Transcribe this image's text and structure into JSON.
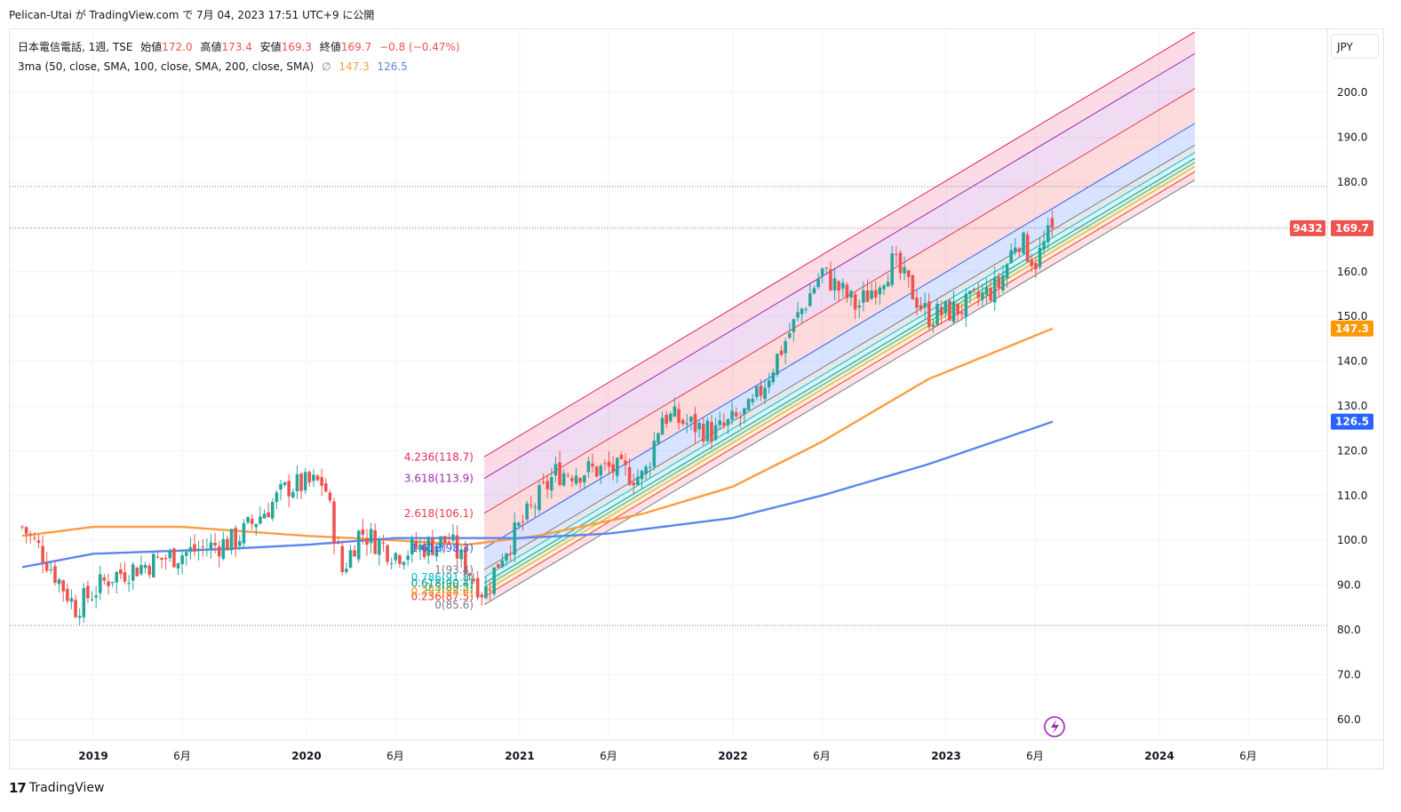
{
  "header": {
    "publish_line": "Pelican-Utai が TradingView.com で 7月 04, 2023 17:51 UTC+9 に公開"
  },
  "legend": {
    "symbol": "日本電信電話, 1週, TSE",
    "open_label": "始値",
    "open_value": "172.0",
    "high_label": "高値",
    "high_value": "173.4",
    "low_label": "安値",
    "low_value": "169.3",
    "close_label": "終値",
    "close_value": "169.7",
    "change": "−0.8 (−0.47%)",
    "indicator": "3ma (50, close, SMA, 100, close, SMA, 200, close, SMA)",
    "ma100_value": "147.3",
    "ma200_value": "126.5"
  },
  "currency": "JPY",
  "footer": {
    "brand": "TradingView"
  },
  "colors": {
    "up": "#26a69a",
    "down": "#ef5350",
    "ma100": "#ff9c42",
    "ma200": "#5b86f0",
    "grid": "#f0f3fa"
  },
  "chart_data": {
    "type": "candlestick",
    "symbol": "日本電信電話",
    "interval": "1週",
    "exchange": "TSE",
    "ylim": [
      55,
      215
    ],
    "y_ticks": [
      60,
      70,
      80,
      90,
      100,
      110,
      120,
      130,
      140,
      150,
      160,
      170,
      180,
      190,
      200
    ],
    "y_tick_labels": [
      "60.0",
      "70.0",
      "80.0",
      "90.0",
      "100.0",
      "110.0",
      "120.0",
      "130.0",
      "140.0",
      "150.0",
      "160.0",
      "170.0",
      "180.0",
      "190.0",
      "200.0"
    ],
    "x_ticks": [
      {
        "date": "2019-01",
        "label": "2019"
      },
      {
        "date": "2019-06",
        "label": "6月"
      },
      {
        "date": "2020-01",
        "label": "2020"
      },
      {
        "date": "2020-06",
        "label": "6月"
      },
      {
        "date": "2021-01",
        "label": "2021"
      },
      {
        "date": "2021-06",
        "label": "6月"
      },
      {
        "date": "2022-01",
        "label": "2022"
      },
      {
        "date": "2022-06",
        "label": "6月"
      },
      {
        "date": "2023-01",
        "label": "2023"
      },
      {
        "date": "2023-06",
        "label": "6月"
      },
      {
        "date": "2024-01",
        "label": "2024"
      },
      {
        "date": "2024-06",
        "label": "6月"
      }
    ],
    "price_anchors": [
      {
        "date": "2018-09",
        "value": 103
      },
      {
        "date": "2018-10",
        "value": 98
      },
      {
        "date": "2018-12",
        "value": 85
      },
      {
        "date": "2019-02",
        "value": 92
      },
      {
        "date": "2019-05",
        "value": 96
      },
      {
        "date": "2019-09",
        "value": 100
      },
      {
        "date": "2019-12",
        "value": 112
      },
      {
        "date": "2020-02",
        "value": 113
      },
      {
        "date": "2020-03",
        "value": 93
      },
      {
        "date": "2020-04",
        "value": 102
      },
      {
        "date": "2020-06",
        "value": 97
      },
      {
        "date": "2020-09",
        "value": 100
      },
      {
        "date": "2020-11",
        "value": 88
      },
      {
        "date": "2020-12",
        "value": 97
      },
      {
        "date": "2021-03",
        "value": 115
      },
      {
        "date": "2021-06",
        "value": 116
      },
      {
        "date": "2021-08",
        "value": 114
      },
      {
        "date": "2021-09",
        "value": 128
      },
      {
        "date": "2021-12",
        "value": 124
      },
      {
        "date": "2022-02",
        "value": 129
      },
      {
        "date": "2022-04",
        "value": 145
      },
      {
        "date": "2022-06",
        "value": 160
      },
      {
        "date": "2022-08",
        "value": 152
      },
      {
        "date": "2022-10",
        "value": 162
      },
      {
        "date": "2022-12",
        "value": 150
      },
      {
        "date": "2023-02",
        "value": 152
      },
      {
        "date": "2023-04",
        "value": 157
      },
      {
        "date": "2023-05",
        "value": 168
      },
      {
        "date": "2023-06",
        "value": 162
      },
      {
        "date": "2023-07",
        "value": 169.7
      }
    ],
    "ma100": [
      {
        "date": "2018-09",
        "value": 101
      },
      {
        "date": "2019-01",
        "value": 103
      },
      {
        "date": "2019-06",
        "value": 103
      },
      {
        "date": "2020-01",
        "value": 101
      },
      {
        "date": "2020-06",
        "value": 100
      },
      {
        "date": "2020-10",
        "value": 99
      },
      {
        "date": "2021-02",
        "value": 101
      },
      {
        "date": "2021-08",
        "value": 106
      },
      {
        "date": "2022-01",
        "value": 112
      },
      {
        "date": "2022-06",
        "value": 122
      },
      {
        "date": "2022-12",
        "value": 136
      },
      {
        "date": "2023-07",
        "value": 147.3
      }
    ],
    "ma200": [
      {
        "date": "2018-09",
        "value": 94
      },
      {
        "date": "2019-01",
        "value": 97
      },
      {
        "date": "2019-08",
        "value": 98
      },
      {
        "date": "2020-01",
        "value": 99
      },
      {
        "date": "2020-06",
        "value": 100.5
      },
      {
        "date": "2021-01",
        "value": 100.5
      },
      {
        "date": "2021-06",
        "value": 101.5
      },
      {
        "date": "2022-01",
        "value": 105
      },
      {
        "date": "2022-06",
        "value": 110
      },
      {
        "date": "2022-12",
        "value": 117
      },
      {
        "date": "2023-07",
        "value": 126.5
      }
    ],
    "fib_channel": {
      "start_date": "2020-11",
      "end_date": "2024-03",
      "base_start": 85.6,
      "base_end": 180.5,
      "levels": [
        {
          "ratio": 0,
          "label": "0(85.6)",
          "color": "#787b86"
        },
        {
          "ratio": 0.236,
          "label": "0.236(87.5)",
          "color": "#f23645"
        },
        {
          "ratio": 0.382,
          "label": "0.382(88.6)",
          "color": "#ff9800"
        },
        {
          "ratio": 0.5,
          "label": "0.5(89.5)",
          "color": "#4caf50"
        },
        {
          "ratio": 0.618,
          "label": "0.618(90.4)",
          "color": "#089981"
        },
        {
          "ratio": 0.786,
          "label": "0.786(91.8)",
          "color": "#00bcd4"
        },
        {
          "ratio": 1,
          "label": "1(93.4)",
          "color": "#787b86"
        },
        {
          "ratio": 1.618,
          "label": "1.618(98.3)",
          "color": "#2962ff"
        },
        {
          "ratio": 2.618,
          "label": "2.618(106.1)",
          "color": "#f23645"
        },
        {
          "ratio": 3.618,
          "label": "3.618(113.9)",
          "color": "#9c27b0"
        },
        {
          "ratio": 4.236,
          "label": "4.236(118.7)",
          "color": "#e91e63"
        }
      ]
    },
    "price_lines": {
      "high": 179,
      "low": 81
    },
    "last_price": {
      "symbol_code": "9432",
      "value": "169.7"
    },
    "ma100_label": "147.3",
    "ma200_label": "126.5"
  }
}
